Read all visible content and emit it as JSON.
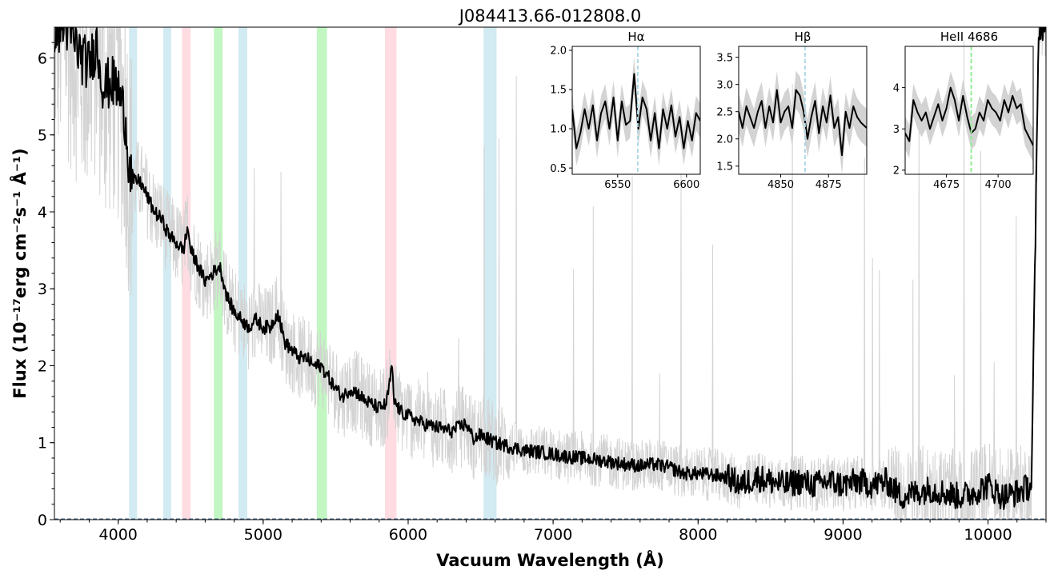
{
  "chart_data": [
    {
      "id": "main",
      "type": "line",
      "title": "J084413.66-012808.0",
      "xlabel": "Vacuum Wavelength (Å)",
      "ylabel": "Flux (10⁻¹⁷erg cm⁻²s⁻¹ Å⁻¹)",
      "xlim": [
        3560,
        10400
      ],
      "ylim": [
        0,
        6.4
      ],
      "xticks": [
        4000,
        5000,
        6000,
        7000,
        8000,
        9000,
        10000
      ],
      "yticks": [
        0,
        1,
        2,
        3,
        4,
        5,
        6
      ],
      "grid": false,
      "zero_line": 0,
      "raw_color": "#d3d3d3",
      "smooth_color": "#000000",
      "bands": [
        {
          "x0": 4075,
          "x1": 4130,
          "color": "#add8e6"
        },
        {
          "x0": 4310,
          "x1": 4365,
          "color": "#add8e6"
        },
        {
          "x0": 4440,
          "x1": 4500,
          "color": "#ffc0cb"
        },
        {
          "x0": 4660,
          "x1": 4720,
          "color": "#90ee90"
        },
        {
          "x0": 4830,
          "x1": 4890,
          "color": "#add8e6"
        },
        {
          "x0": 5370,
          "x1": 5440,
          "color": "#90ee90"
        },
        {
          "x0": 5840,
          "x1": 5920,
          "color": "#ffc0cb"
        },
        {
          "x0": 6520,
          "x1": 6610,
          "color": "#add8e6"
        }
      ],
      "series": [
        {
          "role": "smoothed",
          "x": [
            3600,
            3650,
            3700,
            3750,
            3800,
            3850,
            3900,
            3950,
            4000,
            4050,
            4075,
            4100,
            4150,
            4200,
            4250,
            4300,
            4350,
            4400,
            4450,
            4480,
            4500,
            4550,
            4600,
            4650,
            4700,
            4750,
            4800,
            4850,
            4900,
            4950,
            5000,
            5050,
            5100,
            5150,
            5200,
            5250,
            5300,
            5350,
            5400,
            5450,
            5500,
            5550,
            5600,
            5650,
            5700,
            5750,
            5800,
            5850,
            5890,
            5900,
            5950,
            6000,
            6100,
            6200,
            6300,
            6400,
            6450,
            6500,
            6600,
            6700,
            6800,
            6900,
            7000,
            7100,
            7200,
            7300,
            7400,
            7500,
            7600,
            7700,
            7800,
            7900,
            8000,
            8100,
            8200,
            8300,
            8400,
            8500,
            8600,
            8700,
            8800,
            8900,
            9000,
            9100,
            9200,
            9300,
            9350,
            9400,
            9500,
            9600,
            9700,
            9800,
            9900,
            10000,
            10100,
            10200,
            10300,
            10350
          ],
          "y": [
            6.4,
            6.4,
            6.2,
            6.0,
            5.9,
            6.2,
            5.6,
            5.7,
            5.6,
            5.2,
            4.6,
            4.4,
            4.4,
            4.2,
            4.0,
            3.9,
            3.7,
            3.6,
            3.5,
            3.8,
            3.5,
            3.3,
            3.1,
            3.2,
            3.3,
            2.9,
            2.7,
            2.6,
            2.5,
            2.6,
            2.5,
            2.5,
            2.7,
            2.3,
            2.2,
            2.1,
            2.1,
            2.0,
            2.0,
            1.85,
            1.7,
            1.6,
            1.7,
            1.65,
            1.55,
            1.5,
            1.45,
            1.5,
            2.0,
            1.55,
            1.4,
            1.35,
            1.25,
            1.2,
            1.15,
            1.25,
            1.05,
            1.1,
            1.0,
            0.95,
            0.9,
            0.88,
            0.85,
            0.82,
            0.8,
            0.78,
            0.75,
            0.72,
            0.7,
            0.72,
            0.68,
            0.6,
            0.6,
            0.58,
            0.55,
            0.45,
            0.55,
            0.5,
            0.45,
            0.5,
            0.45,
            0.5,
            0.45,
            0.5,
            0.45,
            0.5,
            0.4,
            0.3,
            0.35,
            0.4,
            0.35,
            0.3,
            0.35,
            0.45,
            0.3,
            0.35,
            0.45,
            6.4
          ]
        }
      ]
    },
    {
      "id": "inset-halpha",
      "type": "line",
      "title": "Hα",
      "xlim": [
        6517,
        6610
      ],
      "ylim": [
        0.42,
        2.05
      ],
      "xticks": [
        6550,
        6600
      ],
      "yticks": [
        0.5,
        1.0,
        1.5,
        2.0
      ],
      "marker_x": 6564.6,
      "marker_color": "#add8e6",
      "series": [
        {
          "role": "smoothed",
          "x": [
            6517,
            6520,
            6523,
            6526,
            6529,
            6532,
            6535,
            6538,
            6541,
            6544,
            6547,
            6550,
            6553,
            6556,
            6559,
            6562,
            6565,
            6568,
            6571,
            6574,
            6577,
            6580,
            6583,
            6586,
            6589,
            6592,
            6595,
            6598,
            6601,
            6604,
            6607,
            6610
          ],
          "y": [
            1.25,
            0.75,
            0.95,
            1.25,
            1.0,
            1.3,
            0.85,
            1.2,
            1.35,
            1.0,
            1.4,
            0.85,
            1.35,
            1.05,
            1.1,
            1.7,
            1.0,
            1.4,
            1.25,
            0.85,
            1.2,
            0.75,
            1.25,
            1.0,
            1.3,
            0.9,
            1.15,
            0.75,
            1.1,
            0.85,
            1.2,
            1.1
          ]
        }
      ]
    },
    {
      "id": "inset-hbeta",
      "type": "line",
      "title": "Hβ",
      "xlim": [
        4828,
        4895
      ],
      "ylim": [
        1.35,
        3.7
      ],
      "xticks": [
        4850,
        4875
      ],
      "yticks": [
        1.5,
        2.0,
        2.5,
        3.0,
        3.5
      ],
      "marker_x": 4862.7,
      "marker_color": "#add8e6",
      "series": [
        {
          "role": "smoothed",
          "x": [
            4828,
            4830,
            4832,
            4834,
            4836,
            4838,
            4840,
            4842,
            4844,
            4846,
            4848,
            4850,
            4852,
            4854,
            4856,
            4858,
            4860,
            4862,
            4864,
            4866,
            4868,
            4870,
            4872,
            4874,
            4876,
            4878,
            4880,
            4882,
            4884,
            4886,
            4888,
            4890,
            4892,
            4895
          ],
          "y": [
            2.5,
            2.2,
            2.6,
            2.4,
            2.2,
            2.5,
            2.7,
            2.2,
            2.6,
            2.3,
            2.9,
            2.3,
            2.5,
            2.6,
            2.2,
            2.9,
            2.8,
            2.5,
            2.0,
            2.4,
            2.7,
            2.1,
            2.6,
            2.3,
            2.8,
            2.2,
            2.4,
            1.7,
            2.5,
            2.2,
            2.6,
            2.4,
            2.3,
            2.2
          ]
        }
      ]
    },
    {
      "id": "inset-heii",
      "type": "line",
      "title": "HeII 4686",
      "xlim": [
        4655,
        4717
      ],
      "ylim": [
        1.9,
        5.0
      ],
      "xticks": [
        4675,
        4700
      ],
      "yticks": [
        2,
        3,
        4
      ],
      "marker_x": 4687.0,
      "marker_color": "#90ee90",
      "series": [
        {
          "role": "smoothed",
          "x": [
            4655,
            4657,
            4659,
            4661,
            4663,
            4665,
            4667,
            4669,
            4671,
            4673,
            4675,
            4677,
            4679,
            4681,
            4683,
            4685,
            4687,
            4689,
            4691,
            4693,
            4695,
            4697,
            4699,
            4701,
            4703,
            4705,
            4707,
            4709,
            4711,
            4713,
            4715,
            4717
          ],
          "y": [
            2.9,
            2.7,
            3.7,
            3.4,
            3.2,
            3.4,
            3.0,
            3.3,
            3.6,
            3.2,
            3.5,
            4.0,
            3.7,
            3.2,
            3.8,
            3.3,
            2.9,
            3.0,
            3.4,
            3.2,
            3.7,
            3.5,
            3.4,
            3.2,
            3.7,
            3.4,
            3.8,
            3.5,
            3.6,
            3.0,
            2.8,
            2.6
          ]
        }
      ]
    }
  ]
}
